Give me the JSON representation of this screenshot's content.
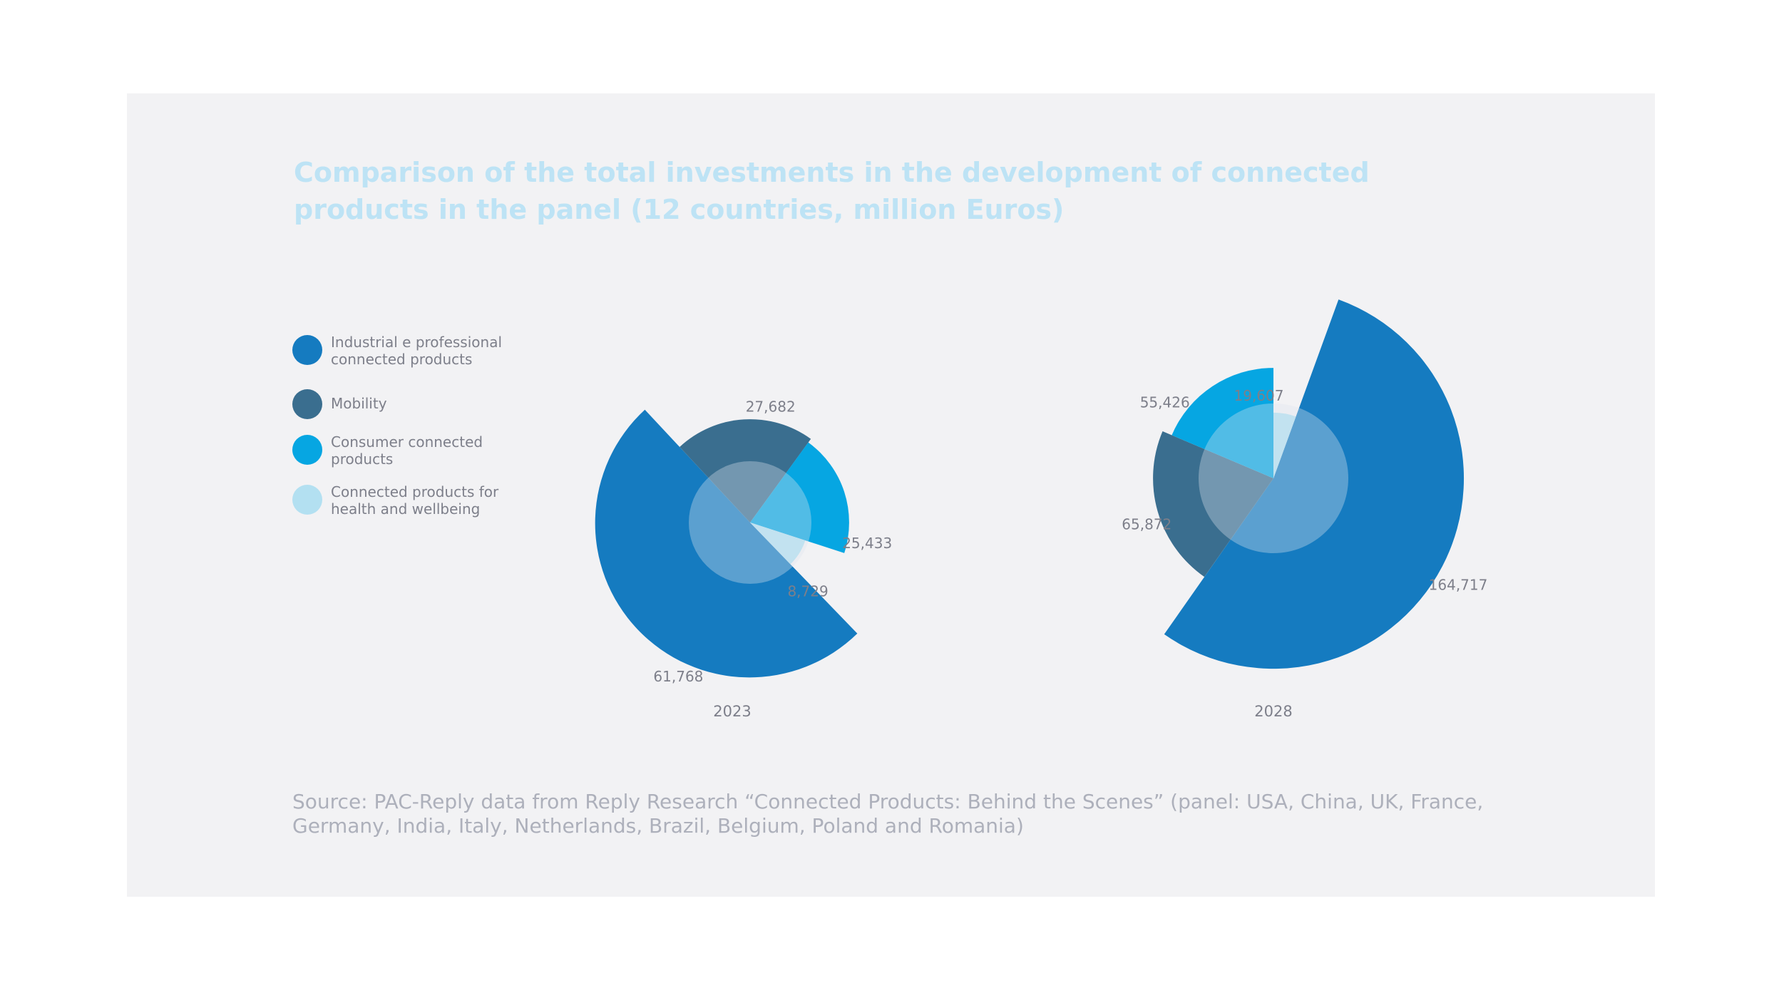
{
  "title": "Comparison of the total investments in the development of connected products in the panel (12 countries, million Euros)",
  "legend": [
    {
      "label": "Industrial e professional connected products",
      "color": "#157bc0"
    },
    {
      "label": "Mobility",
      "color": "#3a6e8f"
    },
    {
      "label": "Consumer connected products",
      "color": "#06a6e2"
    },
    {
      "label": "Connected products for health and wellbeing",
      "color": "#b3e0f1"
    }
  ],
  "source": "Source: PAC-Reply data from Reply Research “Connected Products: Behind the Scenes” (panel: USA, China, UK, France, Germany, India, Italy, Netherlands, Brazil, Belgium, Poland and Romania)",
  "center_color": "#e0e6ee",
  "chart_data": [
    {
      "type": "pie",
      "variant": "polar-area",
      "label": "2023",
      "categories": [
        "Industrial e professional connected products",
        "Mobility",
        "Consumer connected products",
        "Connected products for health and wellbeing"
      ],
      "values": [
        61768,
        27682,
        25433,
        8729
      ],
      "value_labels": [
        "61,768",
        "27,682",
        "25,433",
        "8,729"
      ]
    },
    {
      "type": "pie",
      "variant": "polar-area",
      "label": "2028",
      "categories": [
        "Industrial e professional connected products",
        "Mobility",
        "Consumer connected products",
        "Connected products for health and wellbeing"
      ],
      "values": [
        164717,
        65872,
        55426,
        19607
      ],
      "value_labels": [
        "164,717",
        "65,872",
        "55,426",
        "19,607"
      ]
    }
  ]
}
